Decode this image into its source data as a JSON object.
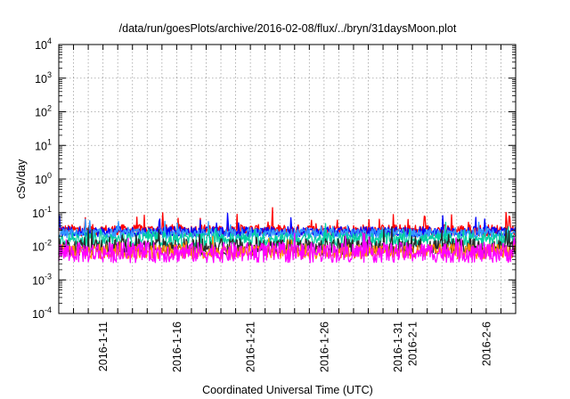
{
  "chart_data": {
    "type": "line",
    "title": "/data/run/goesPlots/archive/2016-02-08/flux/../bryn/31daysMoon.plot",
    "xlabel": "Coordinated Universal Time (UTC)",
    "ylabel": "cSv/day",
    "x_range": [
      "2016-01-08",
      "2016-02-08"
    ],
    "ylim": [
      0.0001,
      10000
    ],
    "y_scale": "log",
    "grid": true,
    "x_ticks": [
      "2016-1-11",
      "2016-1-16",
      "2016-1-21",
      "2016-1-26",
      "2016-1-31",
      "2016-2-1",
      "2016-2-6"
    ],
    "y_ticks": [
      {
        "value": 0.0001,
        "base": "10",
        "exp": "-4"
      },
      {
        "value": 0.001,
        "base": "10",
        "exp": "-3"
      },
      {
        "value": 0.01,
        "base": "10",
        "exp": "-2"
      },
      {
        "value": 0.1,
        "base": "10",
        "exp": "-1"
      },
      {
        "value": 1,
        "base": "10",
        "exp": "0"
      },
      {
        "value": 10,
        "base": "10",
        "exp": "1"
      },
      {
        "value": 100,
        "base": "10",
        "exp": "2"
      },
      {
        "value": 1000,
        "base": "10",
        "exp": "3"
      },
      {
        "value": 10000,
        "base": "10",
        "exp": "4"
      }
    ],
    "series": [
      {
        "color": "#ff0000",
        "base": 0.03,
        "spread": 0.17,
        "spike": 0.55
      },
      {
        "color": "#0000ff",
        "base": 0.027,
        "spread": 0.15,
        "spike": 0.45
      },
      {
        "color": "#3399ff",
        "base": 0.024,
        "spread": 0.14,
        "spike": 0.4
      },
      {
        "color": "#00d0a0",
        "base": 0.016,
        "spread": 0.2,
        "spike": 0.35
      },
      {
        "color": "#2b2b2b",
        "base": 0.0095,
        "spread": 0.25,
        "spike": 0.4
      },
      {
        "color": "#ff8800",
        "base": 0.007,
        "spread": 0.22,
        "spike": 0.35
      },
      {
        "color": "#ff00ff",
        "base": 0.0065,
        "spread": 0.3,
        "spike": 0.45
      }
    ]
  }
}
